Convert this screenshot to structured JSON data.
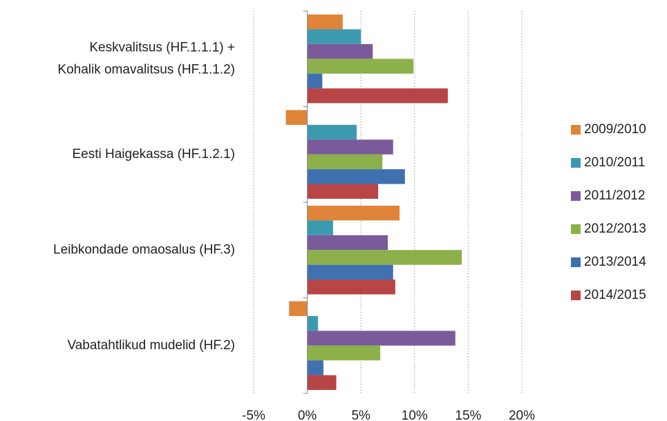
{
  "chart_data": {
    "type": "hbar",
    "categories": [
      "Keskvalitsus (HF.1.1.1) +\nKohalik omavalitsus (HF.1.1.2)",
      "Eesti Haigekassa (HF.1.2.1)",
      "Leibkondade omaosalus (HF.3)",
      "Vabatahtlikud mudelid (HF.2)"
    ],
    "series": [
      {
        "name": "2009/2010",
        "color": "#e0843a",
        "values": [
          3.3,
          -2.0,
          8.6,
          -1.7
        ]
      },
      {
        "name": "2010/2011",
        "color": "#3c9ab0",
        "values": [
          5.0,
          4.6,
          2.4,
          1.0
        ]
      },
      {
        "name": "2011/2012",
        "color": "#7a5a9a",
        "values": [
          6.1,
          8.0,
          7.5,
          13.8
        ]
      },
      {
        "name": "2012/2013",
        "color": "#8cb04a",
        "values": [
          9.9,
          7.0,
          14.4,
          6.8
        ]
      },
      {
        "name": "2013/2014",
        "color": "#3f70b0",
        "values": [
          1.4,
          9.1,
          8.0,
          1.5
        ]
      },
      {
        "name": "2014/2015",
        "color": "#b84545",
        "values": [
          13.1,
          6.6,
          8.2,
          2.7
        ]
      }
    ],
    "xlim": [
      -5,
      20
    ],
    "xticks": [
      {
        "value": -5,
        "label": "-5%"
      },
      {
        "value": 0,
        "label": "0%"
      },
      {
        "value": 5,
        "label": "5%"
      },
      {
        "value": 10,
        "label": "10%"
      },
      {
        "value": 15,
        "label": "15%"
      },
      {
        "value": 20,
        "label": "20%"
      }
    ],
    "grid": true,
    "legend": "right"
  }
}
